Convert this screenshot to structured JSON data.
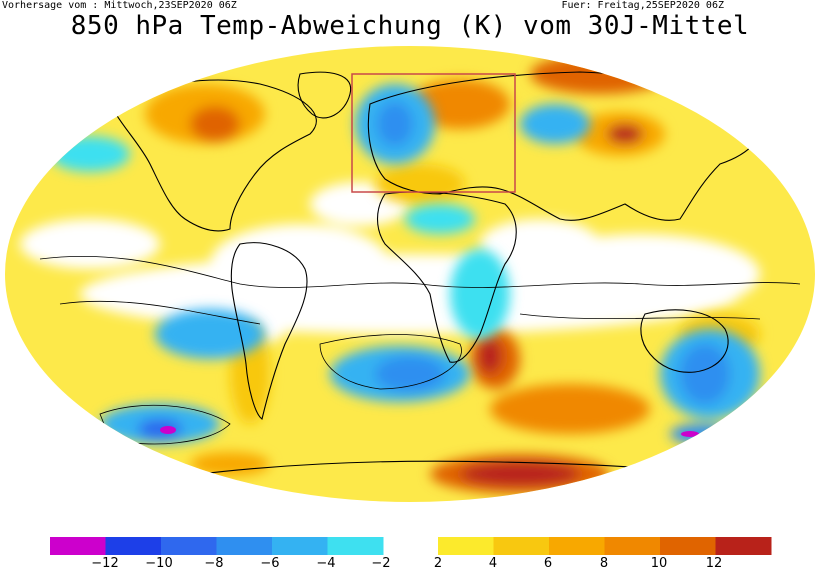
{
  "header": {
    "left": "Vorhersage vom : Mittwoch,23SEP2020 06Z",
    "right": "Fuer: Freitag,25SEP2020 06Z",
    "title": "850 hPa Temp-Abweichung (K) vom 30J-Mittel"
  },
  "colorbar": {
    "ticks": [
      "−12",
      "−10",
      "−8",
      "−6",
      "−4",
      "−2",
      "2",
      "4",
      "6",
      "8",
      "10",
      "12"
    ],
    "cold_colors": [
      "#cc00cc",
      "#1d3fe8",
      "#2f68ee",
      "#2f8ff0",
      "#34b2f2",
      "#3ee0f0"
    ],
    "warm_colors": [
      "#fcea2c",
      "#f8c810",
      "#f8a800",
      "#f08800",
      "#e06400",
      "#b8221a"
    ]
  },
  "map": {
    "background": "#ffffff",
    "region_box_color": "#c8484a"
  }
}
